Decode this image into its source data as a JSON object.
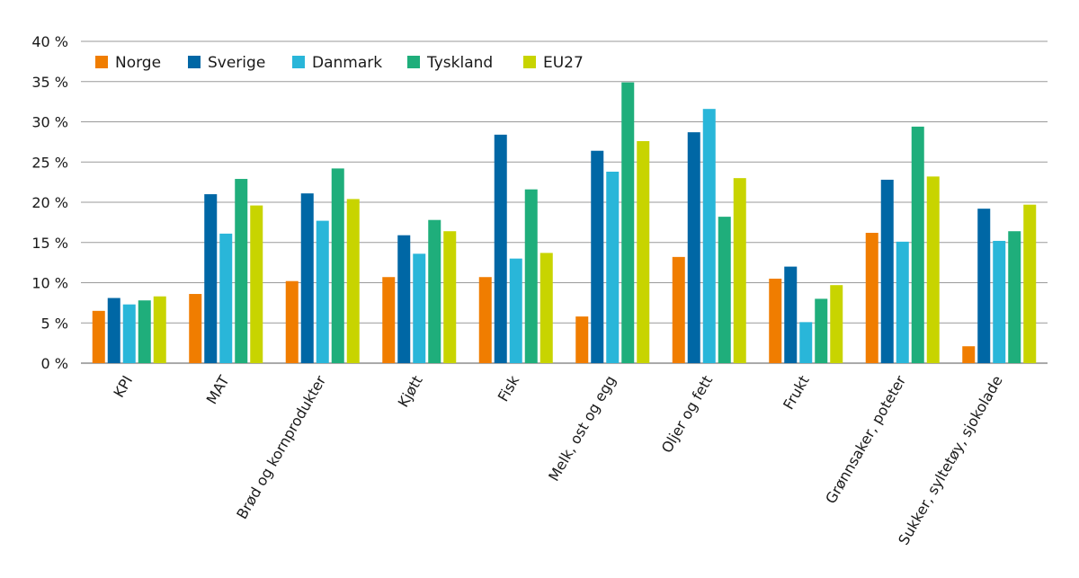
{
  "chart_data": {
    "type": "bar",
    "title": "",
    "xlabel": "",
    "ylabel": "",
    "ylim": [
      0,
      40
    ],
    "yticks": [
      "0 %",
      "5 %",
      "10 %",
      "15 %",
      "20 %",
      "25 %",
      "30 %",
      "35 %",
      "40 %"
    ],
    "grid": true,
    "legend_position": "top-left",
    "categories": [
      "KPI",
      "MAT",
      "Brød og kornprodukter",
      "Kjøtt",
      "Fisk",
      "Melk, ost og egg",
      "Oljer og fett",
      "Frukt",
      "Grønnsaker, poteter",
      "Sukker, syltetøy, sjokolade"
    ],
    "series": [
      {
        "name": "Norge",
        "color": "#f07d00",
        "values": [
          6.5,
          8.6,
          10.2,
          10.7,
          10.7,
          5.8,
          13.2,
          10.5,
          16.2,
          2.1
        ]
      },
      {
        "name": "Sverige",
        "color": "#0067a5",
        "values": [
          8.1,
          21.0,
          21.1,
          15.9,
          28.4,
          26.4,
          28.7,
          12.0,
          22.8,
          19.2
        ]
      },
      {
        "name": "Danmark",
        "color": "#29b6d9",
        "values": [
          7.3,
          16.1,
          17.7,
          13.6,
          13.0,
          23.8,
          31.6,
          5.1,
          15.1,
          15.2
        ]
      },
      {
        "name": "Tyskland",
        "color": "#1fae7b",
        "values": [
          7.8,
          22.9,
          24.2,
          17.8,
          21.6,
          34.9,
          18.2,
          8.0,
          29.4,
          16.4
        ]
      },
      {
        "name": "EU27",
        "color": "#c8d400",
        "values": [
          8.3,
          19.6,
          20.4,
          16.4,
          13.7,
          27.6,
          23.0,
          9.7,
          23.2,
          19.7
        ]
      }
    ]
  }
}
